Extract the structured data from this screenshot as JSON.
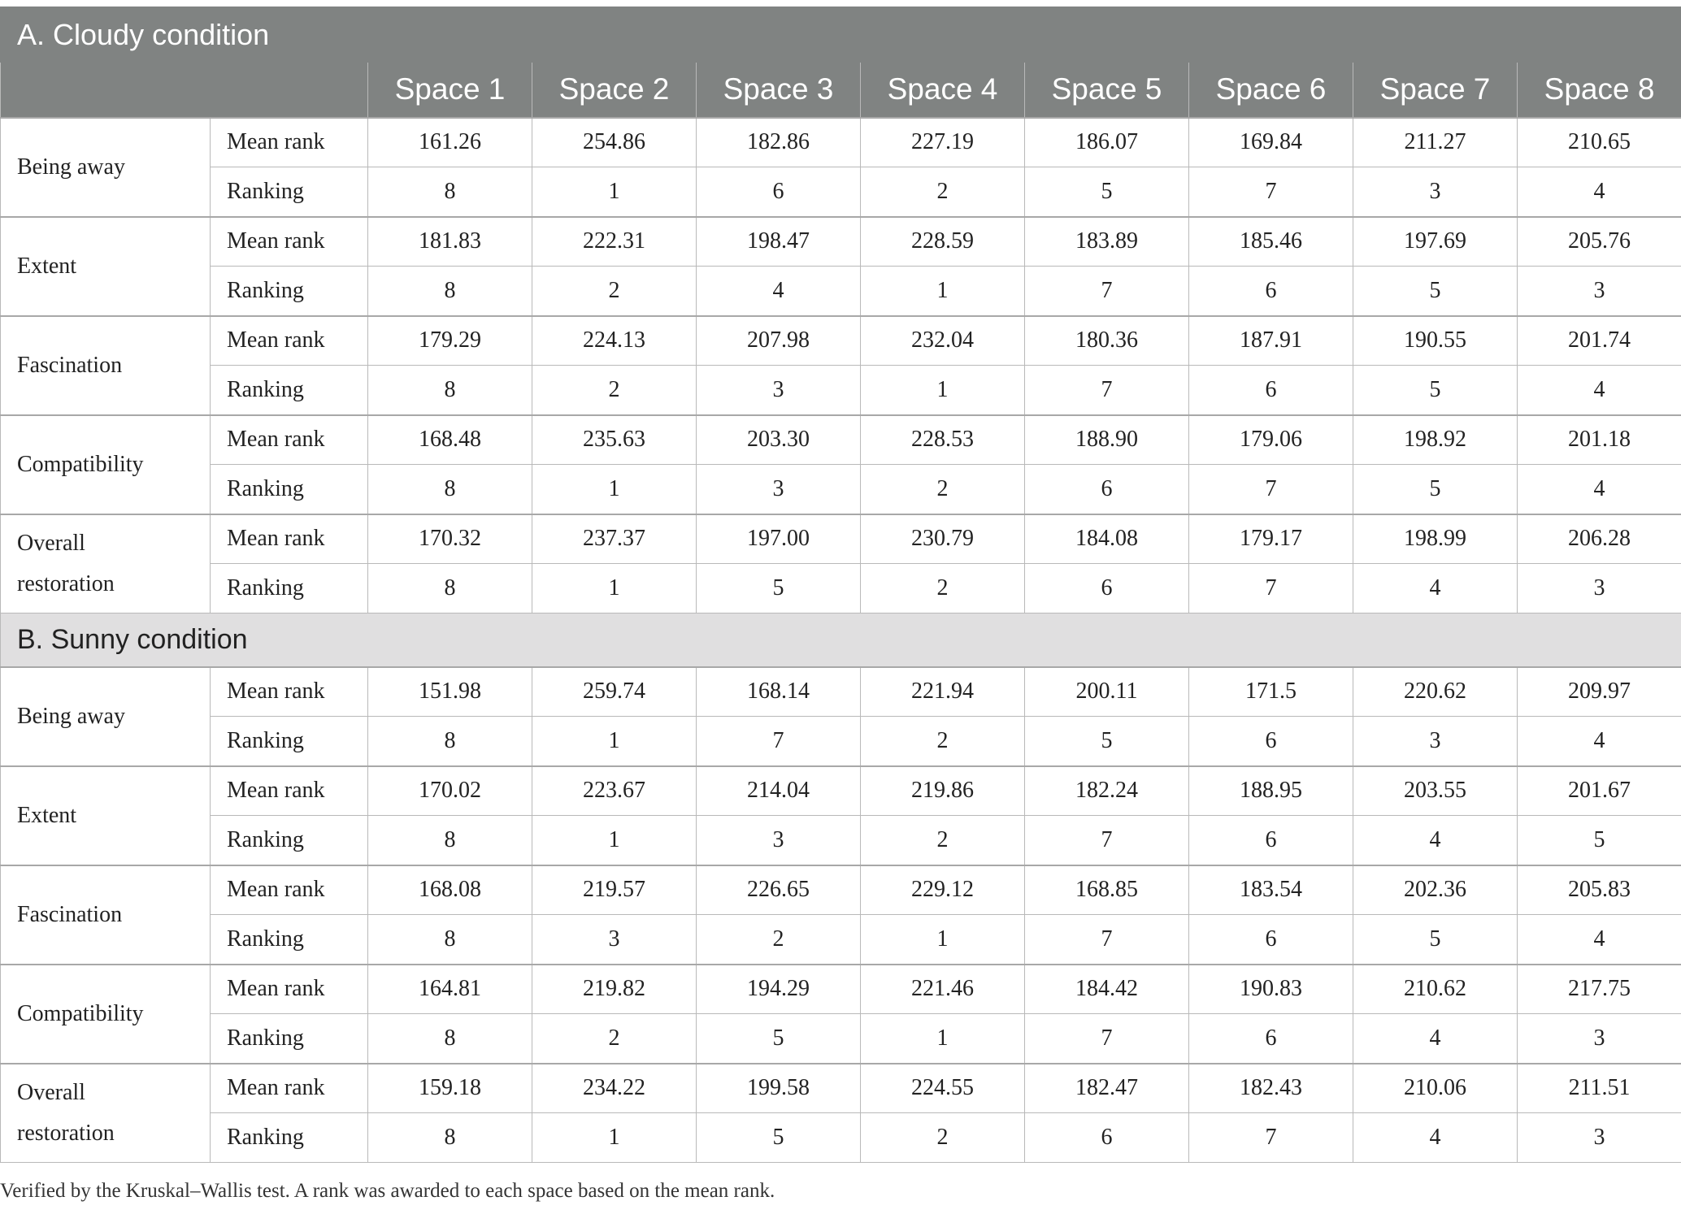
{
  "sections": [
    {
      "title": "A. Cloudy condition",
      "columns": [
        "Space 1",
        "Space 2",
        "Space 3",
        "Space 4",
        "Space 5",
        "Space 6",
        "Space 7",
        "Space 8"
      ],
      "factors": [
        {
          "name": "Being away",
          "mean_rank_label": "Mean rank",
          "ranking_label": "Ranking",
          "mean_rank": [
            "161.26",
            "254.86",
            "182.86",
            "227.19",
            "186.07",
            "169.84",
            "211.27",
            "210.65"
          ],
          "ranking": [
            "8",
            "1",
            "6",
            "2",
            "5",
            "7",
            "3",
            "4"
          ]
        },
        {
          "name": "Extent",
          "mean_rank_label": "Mean rank",
          "ranking_label": "Ranking",
          "mean_rank": [
            "181.83",
            "222.31",
            "198.47",
            "228.59",
            "183.89",
            "185.46",
            "197.69",
            "205.76"
          ],
          "ranking": [
            "8",
            "2",
            "4",
            "1",
            "7",
            "6",
            "5",
            "3"
          ]
        },
        {
          "name": "Fascination",
          "mean_rank_label": "Mean rank",
          "ranking_label": "Ranking",
          "mean_rank": [
            "179.29",
            "224.13",
            "207.98",
            "232.04",
            "180.36",
            "187.91",
            "190.55",
            "201.74"
          ],
          "ranking": [
            "8",
            "2",
            "3",
            "1",
            "7",
            "6",
            "5",
            "4"
          ]
        },
        {
          "name": "Compatibility",
          "mean_rank_label": "Mean rank",
          "ranking_label": "Ranking",
          "mean_rank": [
            "168.48",
            "235.63",
            "203.30",
            "228.53",
            "188.90",
            "179.06",
            "198.92",
            "201.18"
          ],
          "ranking": [
            "8",
            "1",
            "3",
            "2",
            "6",
            "7",
            "5",
            "4"
          ]
        },
        {
          "name": "Overall restoration",
          "mean_rank_label": "Mean rank",
          "ranking_label": "Ranking",
          "mean_rank": [
            "170.32",
            "237.37",
            "197.00",
            "230.79",
            "184.08",
            "179.17",
            "198.99",
            "206.28"
          ],
          "ranking": [
            "8",
            "1",
            "5",
            "2",
            "6",
            "7",
            "4",
            "3"
          ]
        }
      ]
    },
    {
      "title": "B. Sunny condition",
      "factors": [
        {
          "name": "Being away",
          "mean_rank_label": "Mean rank",
          "ranking_label": "Ranking",
          "mean_rank": [
            "151.98",
            "259.74",
            "168.14",
            "221.94",
            "200.11",
            "171.5",
            "220.62",
            "209.97"
          ],
          "ranking": [
            "8",
            "1",
            "7",
            "2",
            "5",
            "6",
            "3",
            "4"
          ]
        },
        {
          "name": "Extent",
          "mean_rank_label": "Mean rank",
          "ranking_label": "Ranking",
          "mean_rank": [
            "170.02",
            "223.67",
            "214.04",
            "219.86",
            "182.24",
            "188.95",
            "203.55",
            "201.67"
          ],
          "ranking": [
            "8",
            "1",
            "3",
            "2",
            "7",
            "6",
            "4",
            "5"
          ]
        },
        {
          "name": "Fascination",
          "mean_rank_label": "Mean rank",
          "ranking_label": "Ranking",
          "mean_rank": [
            "168.08",
            "219.57",
            "226.65",
            "229.12",
            "168.85",
            "183.54",
            "202.36",
            "205.83"
          ],
          "ranking": [
            "8",
            "3",
            "2",
            "1",
            "7",
            "6",
            "5",
            "4"
          ]
        },
        {
          "name": "Compatibility",
          "mean_rank_label": "Mean rank",
          "ranking_label": "Ranking",
          "mean_rank": [
            "164.81",
            "219.82",
            "194.29",
            "221.46",
            "184.42",
            "190.83",
            "210.62",
            "217.75"
          ],
          "ranking": [
            "8",
            "2",
            "5",
            "1",
            "7",
            "6",
            "4",
            "3"
          ]
        },
        {
          "name": "Overall restoration",
          "mean_rank_label": "Mean rank",
          "ranking_label": "Ranking",
          "mean_rank": [
            "159.18",
            "234.22",
            "199.58",
            "224.55",
            "182.47",
            "182.43",
            "210.06",
            "211.51"
          ],
          "ranking": [
            "8",
            "1",
            "5",
            "2",
            "6",
            "7",
            "4",
            "3"
          ]
        }
      ]
    }
  ],
  "footnote": "Verified by the Kruskal–Wallis test. A rank was awarded to each space based on the mean rank.",
  "colors": {
    "header_bg": "#808382",
    "section_b_bg": "#e0dfe0",
    "border": "#b9b9b9"
  }
}
